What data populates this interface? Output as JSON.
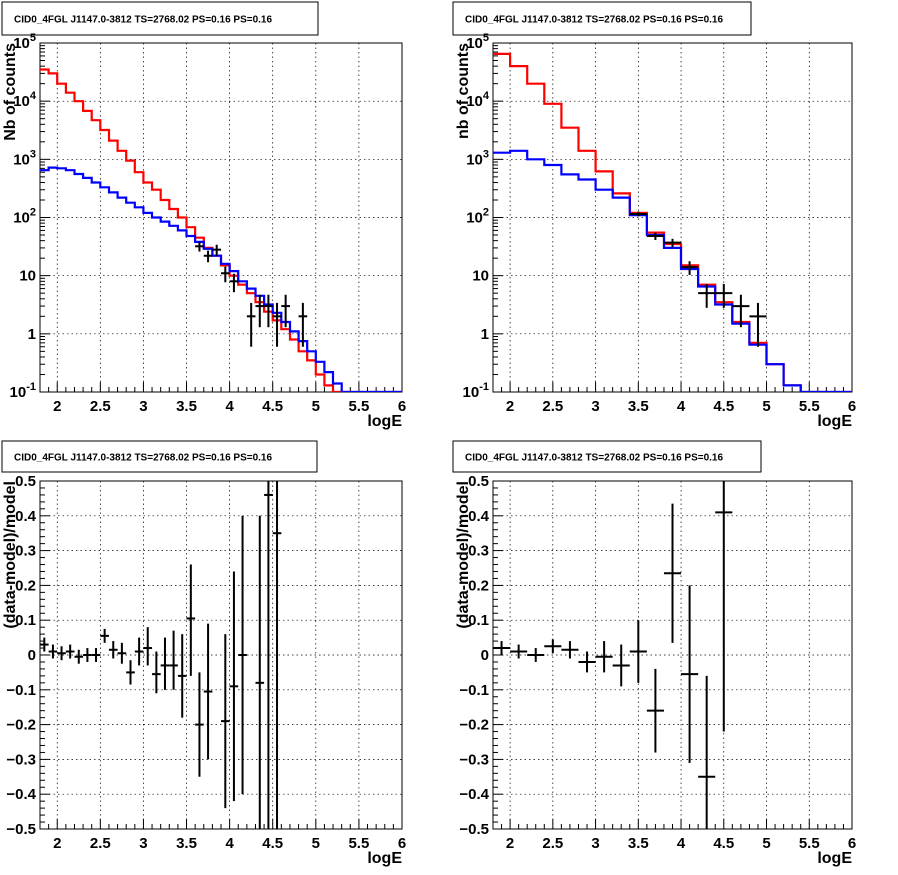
{
  "panels": [
    {
      "title": "CID0_4FGL J1147.0-3812 TS=2768.02 PS=0.16 PS=0.16",
      "xlabel": "logE",
      "ylabel": "Nb of counts",
      "ytick_labels": {
        "0.1": "10^-1",
        "1": "1",
        "10": "10",
        "100": "10^2",
        "1000": "10^3",
        "10000": "10^4",
        "100000": "10^5"
      }
    },
    {
      "title": "CID0_4FGL J1147.0-3812 TS=2768.02 PS=0.16 PS=0.16",
      "xlabel": "logE",
      "ylabel": "nb of counts",
      "ytick_labels": {
        "0.1": "10^-1",
        "1": "1",
        "10": "10",
        "100": "10^2",
        "1000": "10^3",
        "10000": "10^4",
        "100000": "10^5"
      }
    },
    {
      "title": "CID0_4FGL J1147.0-3812 TS=2768.02 PS=0.16 PS=0.16",
      "xlabel": "logE",
      "ylabel": "(data-model)/model",
      "ytick_labels": {
        "-0.5": "−0.5",
        "-0.4": "−0.4",
        "-0.3": "−0.3",
        "-0.2": "−0.2",
        "-0.1": "−0.1",
        "0": "0",
        "0.1": "0.1",
        "0.2": "0.2",
        "0.3": "0.3",
        "0.4": "0.4",
        "0.5": "0.5"
      }
    },
    {
      "title": "CID0_4FGL J1147.0-3812 TS=2768.02 PS=0.16 PS=0.16",
      "xlabel": "logE",
      "ylabel": "(data-model)/model",
      "ytick_labels": {
        "-0.5": "−0.5",
        "-0.4": "−0.4",
        "-0.3": "−0.3",
        "-0.2": "−0.2",
        "-0.1": "−0.1",
        "0": "0",
        "0.1": "0.1",
        "0.2": "0.2",
        "0.3": "0.3",
        "0.4": "0.4",
        "0.5": "0.5"
      }
    }
  ],
  "chart_data": [
    {
      "type": "line",
      "title": "CID0_4FGL J1147.0-3812 TS=2768.02 PS=0.16 PS=0.16",
      "xlabel": "logE",
      "ylabel": "Nb of counts",
      "xlim": [
        1.8,
        6.0
      ],
      "ylim": [
        0.1,
        100000
      ],
      "yscale": "log",
      "xticks": [
        2,
        2.5,
        3,
        3.5,
        4,
        4.5,
        5,
        5.5,
        6
      ],
      "yticks": [
        0.1,
        1,
        10,
        100,
        1000,
        10000,
        100000
      ],
      "grid": true,
      "bin_edges": [
        1.8,
        1.9,
        2.0,
        2.1,
        2.2,
        2.3,
        2.4,
        2.5,
        2.6,
        2.7,
        2.8,
        2.9,
        3.0,
        3.1,
        3.2,
        3.3,
        3.4,
        3.5,
        3.6,
        3.7,
        3.8,
        3.9,
        4.0,
        4.1,
        4.2,
        4.3,
        4.4,
        4.5,
        4.6,
        4.7,
        4.8,
        4.9,
        5.0,
        5.1,
        5.2,
        5.3,
        5.4,
        5.5,
        5.6,
        5.7,
        5.8,
        5.9,
        6.0
      ],
      "series": [
        {
          "color": "#ff0000",
          "style": "step",
          "values": [
            35000,
            30000,
            20000,
            14000,
            10000,
            6800,
            4700,
            3200,
            2100,
            1400,
            950,
            600,
            400,
            300,
            200,
            140,
            100,
            68,
            45,
            30,
            22,
            15,
            10,
            7,
            5,
            3.5,
            2.4,
            1.7,
            1.2,
            0.8,
            0.5,
            0.35,
            0.2,
            0.13,
            0.1,
            0.1,
            0.1,
            0.1,
            0.1,
            0.1,
            0.1,
            0.1
          ]
        },
        {
          "color": "#0000ff",
          "style": "step",
          "values": [
            650,
            720,
            700,
            650,
            560,
            480,
            400,
            330,
            270,
            220,
            180,
            150,
            120,
            100,
            85,
            72,
            60,
            48,
            38,
            29,
            22,
            16,
            12,
            8,
            6,
            4.5,
            3.2,
            2.3,
            1.6,
            1.1,
            0.75,
            0.5,
            0.33,
            0.22,
            0.14,
            0.1,
            0.1,
            0.1,
            0.1,
            0.1,
            0.1,
            0.1
          ]
        },
        {
          "color": "#000000",
          "style": "errorbar",
          "points": [
            {
              "x": 3.65,
              "y": 32,
              "xerr": 0.05,
              "ylo": 26,
              "yhi": 38
            },
            {
              "x": 3.75,
              "y": 22,
              "xerr": 0.05,
              "ylo": 17,
              "yhi": 27
            },
            {
              "x": 3.85,
              "y": 28,
              "xerr": 0.05,
              "ylo": 22,
              "yhi": 34
            },
            {
              "x": 3.95,
              "y": 11,
              "xerr": 0.05,
              "ylo": 7.7,
              "yhi": 14.3
            },
            {
              "x": 4.05,
              "y": 8,
              "xerr": 0.05,
              "ylo": 5.2,
              "yhi": 10.8
            },
            {
              "x": 4.25,
              "y": 2,
              "xerr": 0.05,
              "ylo": 0.6,
              "yhi": 3.4
            },
            {
              "x": 4.35,
              "y": 3,
              "xerr": 0.05,
              "ylo": 1.3,
              "yhi": 4.7
            },
            {
              "x": 4.45,
              "y": 3,
              "xerr": 0.05,
              "ylo": 1.3,
              "yhi": 4.7
            },
            {
              "x": 4.55,
              "y": 2,
              "xerr": 0.05,
              "ylo": 0.6,
              "yhi": 3.4
            },
            {
              "x": 4.65,
              "y": 3,
              "xerr": 0.05,
              "ylo": 1.3,
              "yhi": 4.7
            },
            {
              "x": 4.85,
              "y": 2,
              "xerr": 0.05,
              "ylo": 0.6,
              "yhi": 3.4
            }
          ]
        }
      ]
    },
    {
      "type": "line",
      "title": "CID0_4FGL J1147.0-3812 TS=2768.02 PS=0.16 PS=0.16",
      "xlabel": "logE",
      "ylabel": "nb of counts",
      "xlim": [
        1.8,
        6.0
      ],
      "ylim": [
        0.1,
        100000
      ],
      "yscale": "log",
      "xticks": [
        2,
        2.5,
        3,
        3.5,
        4,
        4.5,
        5,
        5.5,
        6
      ],
      "yticks": [
        0.1,
        1,
        10,
        100,
        1000,
        10000,
        100000
      ],
      "grid": true,
      "bin_edges": [
        1.8,
        2.0,
        2.2,
        2.4,
        2.6,
        2.8,
        3.0,
        3.2,
        3.4,
        3.6,
        3.8,
        4.0,
        4.2,
        4.4,
        4.6,
        4.8,
        5.0,
        5.2,
        5.4,
        5.6,
        5.8,
        6.0
      ],
      "series": [
        {
          "color": "#ff0000",
          "style": "step",
          "values": [
            65000,
            40000,
            20000,
            9000,
            3500,
            1400,
            620,
            260,
            120,
            55,
            35,
            15,
            7,
            3.5,
            1.6,
            0.7,
            0.3,
            0.13,
            0.1,
            0.1,
            0.1
          ]
        },
        {
          "color": "#0000ff",
          "style": "step",
          "values": [
            1300,
            1400,
            1000,
            800,
            550,
            450,
            300,
            220,
            110,
            50,
            30,
            13,
            6.5,
            3.2,
            1.5,
            0.65,
            0.3,
            0.13,
            0.1,
            0.1,
            0.1
          ]
        },
        {
          "color": "#000000",
          "style": "errorbar",
          "points": [
            {
              "x": 3.5,
              "y": 115,
              "xerr": 0.1,
              "ylo": 105,
              "yhi": 126
            },
            {
              "x": 3.7,
              "y": 48,
              "xerr": 0.1,
              "ylo": 41,
              "yhi": 55
            },
            {
              "x": 3.9,
              "y": 37,
              "xerr": 0.1,
              "ylo": 31,
              "yhi": 43
            },
            {
              "x": 4.1,
              "y": 14,
              "xerr": 0.1,
              "ylo": 10.3,
              "yhi": 17.7
            },
            {
              "x": 4.3,
              "y": 5,
              "xerr": 0.1,
              "ylo": 2.8,
              "yhi": 7.2
            },
            {
              "x": 4.5,
              "y": 5,
              "xerr": 0.1,
              "ylo": 2.8,
              "yhi": 7.2
            },
            {
              "x": 4.7,
              "y": 3,
              "xerr": 0.1,
              "ylo": 1.3,
              "yhi": 4.7
            },
            {
              "x": 4.9,
              "y": 2,
              "xerr": 0.1,
              "ylo": 0.6,
              "yhi": 3.4
            }
          ]
        }
      ]
    },
    {
      "type": "scatter",
      "title": "CID0_4FGL J1147.0-3812 TS=2768.02 PS=0.16 PS=0.16",
      "xlabel": "logE",
      "ylabel": "(data-model)/model",
      "xlim": [
        1.8,
        6.0
      ],
      "ylim": [
        -0.5,
        0.5
      ],
      "xticks": [
        2,
        2.5,
        3,
        3.5,
        4,
        4.5,
        5,
        5.5,
        6
      ],
      "yticks": [
        -0.5,
        -0.4,
        -0.3,
        -0.2,
        -0.1,
        0,
        0.1,
        0.2,
        0.3,
        0.4,
        0.5
      ],
      "grid": true,
      "series": [
        {
          "color": "#000000",
          "style": "errorbar",
          "points": [
            {
              "x": 1.85,
              "y": 0.03,
              "xerr": 0.05,
              "ylo": 0.01,
              "yhi": 0.05
            },
            {
              "x": 1.95,
              "y": 0.01,
              "xerr": 0.05,
              "ylo": -0.01,
              "yhi": 0.03
            },
            {
              "x": 2.05,
              "y": 0.005,
              "xerr": 0.05,
              "ylo": -0.015,
              "yhi": 0.025
            },
            {
              "x": 2.15,
              "y": 0.01,
              "xerr": 0.05,
              "ylo": -0.01,
              "yhi": 0.03
            },
            {
              "x": 2.25,
              "y": -0.005,
              "xerr": 0.05,
              "ylo": -0.025,
              "yhi": 0.015
            },
            {
              "x": 2.35,
              "y": 0.0,
              "xerr": 0.05,
              "ylo": -0.02,
              "yhi": 0.02
            },
            {
              "x": 2.45,
              "y": 0.0,
              "xerr": 0.05,
              "ylo": -0.02,
              "yhi": 0.02
            },
            {
              "x": 2.55,
              "y": 0.055,
              "xerr": 0.05,
              "ylo": 0.035,
              "yhi": 0.075
            },
            {
              "x": 2.65,
              "y": 0.015,
              "xerr": 0.05,
              "ylo": -0.01,
              "yhi": 0.04
            },
            {
              "x": 2.75,
              "y": 0.005,
              "xerr": 0.05,
              "ylo": -0.025,
              "yhi": 0.035
            },
            {
              "x": 2.85,
              "y": -0.05,
              "xerr": 0.05,
              "ylo": -0.085,
              "yhi": -0.015
            },
            {
              "x": 2.95,
              "y": 0.01,
              "xerr": 0.05,
              "ylo": -0.03,
              "yhi": 0.05
            },
            {
              "x": 3.05,
              "y": 0.02,
              "xerr": 0.05,
              "ylo": -0.03,
              "yhi": 0.08
            },
            {
              "x": 3.15,
              "y": -0.055,
              "xerr": 0.05,
              "ylo": -0.11,
              "yhi": 0.01
            },
            {
              "x": 3.25,
              "y": -0.03,
              "xerr": 0.05,
              "ylo": -0.1,
              "yhi": 0.05
            },
            {
              "x": 3.35,
              "y": -0.03,
              "xerr": 0.05,
              "ylo": -0.1,
              "yhi": 0.07
            },
            {
              "x": 3.45,
              "y": -0.06,
              "xerr": 0.05,
              "ylo": -0.18,
              "yhi": 0.06
            },
            {
              "x": 3.55,
              "y": 0.105,
              "xerr": 0.05,
              "ylo": -0.06,
              "yhi": 0.26
            },
            {
              "x": 3.65,
              "y": -0.2,
              "xerr": 0.05,
              "ylo": -0.35,
              "yhi": -0.05
            },
            {
              "x": 3.75,
              "y": -0.105,
              "xerr": 0.05,
              "ylo": -0.3,
              "yhi": 0.09
            },
            {
              "x": 3.95,
              "y": -0.19,
              "xerr": 0.05,
              "ylo": -0.44,
              "yhi": 0.06
            },
            {
              "x": 4.05,
              "y": -0.09,
              "xerr": 0.05,
              "ylo": -0.42,
              "yhi": 0.24
            },
            {
              "x": 4.15,
              "y": 0.0,
              "xerr": 0.05,
              "ylo": -0.4,
              "yhi": 0.4
            },
            {
              "x": 4.35,
              "y": -0.08,
              "xerr": 0.05,
              "ylo": -0.5,
              "yhi": 0.4
            },
            {
              "x": 4.45,
              "y": 0.46,
              "xerr": 0.05,
              "ylo": -0.5,
              "yhi": 0.5
            },
            {
              "x": 4.55,
              "y": 0.35,
              "xerr": 0.05,
              "ylo": -0.5,
              "yhi": 0.5
            }
          ]
        }
      ]
    },
    {
      "type": "scatter",
      "title": "CID0_4FGL J1147.0-3812 TS=2768.02 PS=0.16 PS=0.16",
      "xlabel": "logE",
      "ylabel": "(data-model)/model",
      "xlim": [
        1.8,
        6.0
      ],
      "ylim": [
        -0.5,
        0.5
      ],
      "xticks": [
        2,
        2.5,
        3,
        3.5,
        4,
        4.5,
        5,
        5.5,
        6
      ],
      "yticks": [
        -0.5,
        -0.4,
        -0.3,
        -0.2,
        -0.1,
        0,
        0.1,
        0.2,
        0.3,
        0.4,
        0.5
      ],
      "grid": true,
      "series": [
        {
          "color": "#000000",
          "style": "errorbar",
          "points": [
            {
              "x": 1.9,
              "y": 0.02,
              "xerr": 0.1,
              "ylo": 0.0,
              "yhi": 0.04
            },
            {
              "x": 2.1,
              "y": 0.01,
              "xerr": 0.1,
              "ylo": -0.01,
              "yhi": 0.03
            },
            {
              "x": 2.3,
              "y": 0.0,
              "xerr": 0.1,
              "ylo": -0.02,
              "yhi": 0.02
            },
            {
              "x": 2.5,
              "y": 0.025,
              "xerr": 0.1,
              "ylo": 0.005,
              "yhi": 0.045
            },
            {
              "x": 2.7,
              "y": 0.015,
              "xerr": 0.1,
              "ylo": -0.01,
              "yhi": 0.04
            },
            {
              "x": 2.9,
              "y": -0.02,
              "xerr": 0.1,
              "ylo": -0.05,
              "yhi": 0.01
            },
            {
              "x": 3.1,
              "y": -0.005,
              "xerr": 0.1,
              "ylo": -0.05,
              "yhi": 0.04
            },
            {
              "x": 3.3,
              "y": -0.03,
              "xerr": 0.1,
              "ylo": -0.09,
              "yhi": 0.03
            },
            {
              "x": 3.5,
              "y": 0.01,
              "xerr": 0.1,
              "ylo": -0.08,
              "yhi": 0.1
            },
            {
              "x": 3.7,
              "y": -0.16,
              "xerr": 0.1,
              "ylo": -0.28,
              "yhi": -0.04
            },
            {
              "x": 3.9,
              "y": 0.235,
              "xerr": 0.1,
              "ylo": 0.035,
              "yhi": 0.435
            },
            {
              "x": 4.1,
              "y": -0.055,
              "xerr": 0.1,
              "ylo": -0.31,
              "yhi": 0.2
            },
            {
              "x": 4.3,
              "y": -0.35,
              "xerr": 0.1,
              "ylo": -0.5,
              "yhi": -0.06
            },
            {
              "x": 4.5,
              "y": 0.41,
              "xerr": 0.1,
              "ylo": -0.22,
              "yhi": 0.5
            }
          ]
        }
      ]
    }
  ]
}
